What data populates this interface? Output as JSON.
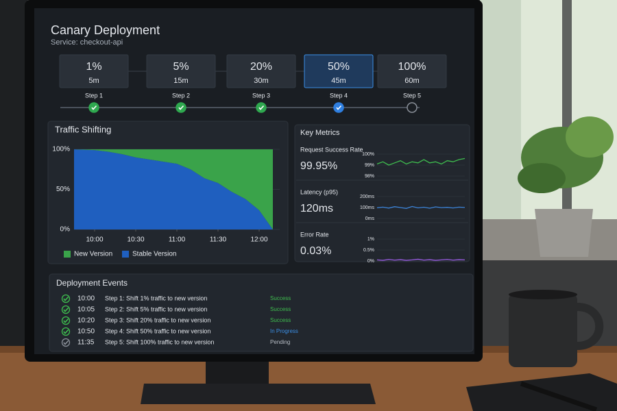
{
  "header": {
    "title": "Canary Deployment",
    "service": "Service: checkout-api"
  },
  "steps": [
    {
      "percent": "1%",
      "duration": "5m",
      "label": "Step 1",
      "color": "#2fa84f"
    },
    {
      "percent": "5%",
      "duration": "15m",
      "label": "Step 2",
      "color": "#2fa84f"
    },
    {
      "percent": "20%",
      "duration": "30m",
      "label": "Step 3",
      "color": "#2fa84f"
    },
    {
      "percent": "50%",
      "duration": "45m",
      "label": "Step 4",
      "color": "#2f7fe0"
    },
    {
      "percent": "100%",
      "duration": "60m",
      "label": "Step 5",
      "color": "#8a9099"
    }
  ],
  "traffic": {
    "type": "area",
    "title": "Traffic Shifting",
    "x": [
      "09:45",
      "10:00",
      "10:10",
      "10:20",
      "10:30",
      "10:45",
      "11:00",
      "11:10",
      "11:20",
      "11:30",
      "11:40",
      "11:50",
      "12:00",
      "12:10"
    ],
    "xlim": [
      "09:45",
      "12:15"
    ],
    "xticks": [
      "10:00",
      "10:30",
      "11:00",
      "11:30",
      "12:00"
    ],
    "ylim": [
      0,
      100
    ],
    "yticks": [
      {
        "value": 0,
        "label": "0%"
      },
      {
        "value": 50,
        "label": "50%"
      },
      {
        "value": 100,
        "label": "100%"
      }
    ],
    "series": [
      {
        "name": "New Version",
        "color": "#3aa34a",
        "values": [
          0,
          1,
          3,
          6,
          10,
          14,
          18,
          25,
          36,
          42,
          53,
          62,
          76,
          100
        ]
      },
      {
        "name": "Stable Version",
        "color": "#1f5fbf",
        "values": [
          100,
          99,
          97,
          94,
          90,
          86,
          82,
          75,
          64,
          58,
          47,
          38,
          24,
          0
        ]
      }
    ]
  },
  "metrics": {
    "title": "Key Metrics",
    "rows": [
      {
        "label": "Request Success Rate",
        "value": "99.95%",
        "color": "#3fbf4f",
        "ylim": [
          98,
          100
        ],
        "yticks": [
          {
            "value": 98,
            "label": "98%"
          },
          {
            "value": 99,
            "label": "99%"
          },
          {
            "value": 100,
            "label": "100%"
          }
        ],
        "values": [
          99.1,
          99.3,
          99.0,
          99.2,
          99.4,
          99.1,
          99.3,
          99.2,
          99.5,
          99.2,
          99.3,
          99.1,
          99.4,
          99.3,
          99.5,
          99.6
        ]
      },
      {
        "label": "Latency (p95)",
        "value": "120ms",
        "color": "#3b82d6",
        "ylim": [
          0,
          200
        ],
        "yticks": [
          {
            "value": 0,
            "label": "0ms"
          },
          {
            "value": 100,
            "label": "100ms"
          },
          {
            "value": 200,
            "label": "200ms"
          }
        ],
        "values": [
          98,
          104,
          95,
          108,
          100,
          92,
          110,
          97,
          103,
          94,
          106,
          99,
          102,
          96,
          104,
          101
        ]
      },
      {
        "label": "Error Rate",
        "value": "0.03%",
        "color": "#9b5de5",
        "ylim": [
          0,
          1
        ],
        "yticks": [
          {
            "value": 0,
            "label": "0%"
          },
          {
            "value": 0.5,
            "label": "0.5%"
          },
          {
            "value": 1,
            "label": "1%"
          }
        ],
        "values": [
          0.05,
          0.03,
          0.07,
          0.04,
          0.06,
          0.03,
          0.05,
          0.08,
          0.04,
          0.06,
          0.03,
          0.05,
          0.07,
          0.04,
          0.06,
          0.05
        ]
      }
    ]
  },
  "events": {
    "title": "Deployment Events",
    "rows": [
      {
        "time": "10:00",
        "text": "Step 1: Shift 1% traffic to new version",
        "status": "Success",
        "status_color": "#3fbf4f",
        "icon_color": "#3fbf4f"
      },
      {
        "time": "10:05",
        "text": "Step 2: Shift 5% traffic to new version",
        "status": "Success",
        "status_color": "#3fbf4f",
        "icon_color": "#3fbf4f"
      },
      {
        "time": "10:20",
        "text": "Step 3: Shift 20% traffic to new version",
        "status": "Success",
        "status_color": "#3fbf4f",
        "icon_color": "#3fbf4f"
      },
      {
        "time": "10:50",
        "text": "Step 4: Shift 50% traffic to new version",
        "status": "In Progress",
        "status_color": "#3b8fe6",
        "icon_color": "#3fbf4f"
      },
      {
        "time": "11:35",
        "text": "Step 5: Shift 100% traffic to new version",
        "status": "Pending",
        "status_color": "#b8bec6",
        "icon_color": "#8a9099"
      }
    ]
  }
}
